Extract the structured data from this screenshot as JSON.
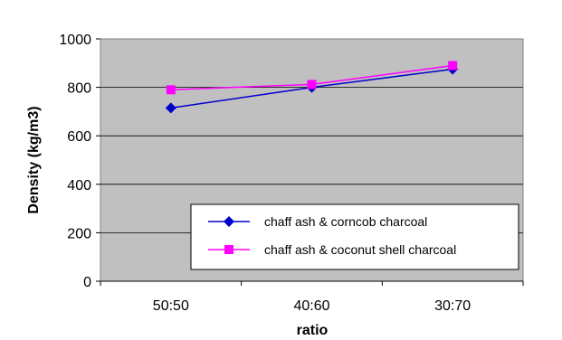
{
  "chart_data": {
    "type": "line",
    "categories": [
      "50:50",
      "40:60",
      "30:70"
    ],
    "series": [
      {
        "name": "chaff ash & corncob charcoal",
        "values": [
          715,
          800,
          875
        ],
        "color": "#0000cc",
        "marker": "diamond"
      },
      {
        "name": "chaff ash & coconut shell charcoal",
        "values": [
          790,
          812,
          890
        ],
        "color": "#ff00ff",
        "marker": "square"
      }
    ],
    "xlabel": "ratio",
    "ylabel": "Density (kg/m3)",
    "ylim": [
      0,
      1000
    ],
    "yticks": [
      0,
      200,
      400,
      600,
      800,
      1000
    ],
    "grid": true,
    "plot_background": "#c0c0c0",
    "legend_position": "bottom-right"
  }
}
